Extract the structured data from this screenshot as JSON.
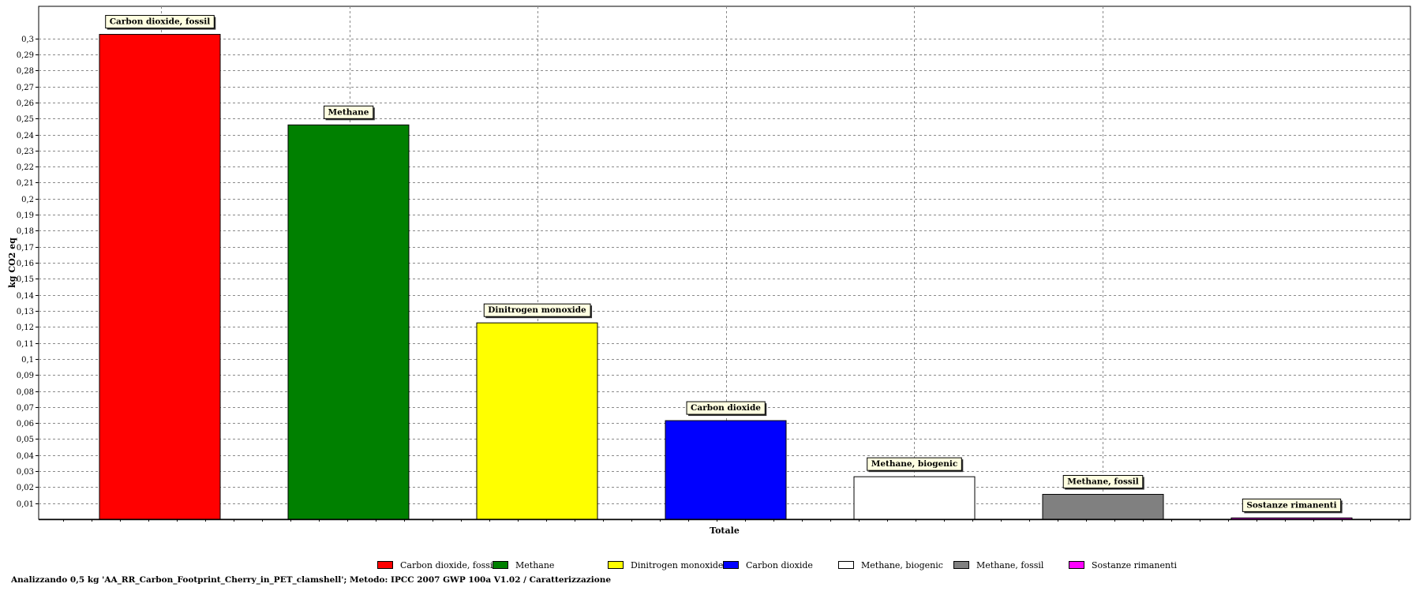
{
  "chart_data": {
    "type": "bar",
    "ylabel": "kg CO2 eq",
    "xlabel": "Totale",
    "ylim": [
      0,
      0.32
    ],
    "y_ticks": [
      {
        "value": 0.01,
        "label": "0,01"
      },
      {
        "value": 0.02,
        "label": "0,02"
      },
      {
        "value": 0.03,
        "label": "0,03"
      },
      {
        "value": 0.04,
        "label": "0,04"
      },
      {
        "value": 0.05,
        "label": "0,05"
      },
      {
        "value": 0.06,
        "label": "0,06"
      },
      {
        "value": 0.07,
        "label": "0,07"
      },
      {
        "value": 0.08,
        "label": "0,08"
      },
      {
        "value": 0.09,
        "label": "0,09"
      },
      {
        "value": 0.1,
        "label": "0,1"
      },
      {
        "value": 0.11,
        "label": "0,11"
      },
      {
        "value": 0.12,
        "label": "0,12"
      },
      {
        "value": 0.13,
        "label": "0,13"
      },
      {
        "value": 0.14,
        "label": "0,14"
      },
      {
        "value": 0.15,
        "label": "0,15"
      },
      {
        "value": 0.16,
        "label": "0,16"
      },
      {
        "value": 0.17,
        "label": "0,17"
      },
      {
        "value": 0.18,
        "label": "0,18"
      },
      {
        "value": 0.19,
        "label": "0,19"
      },
      {
        "value": 0.2,
        "label": "0,2"
      },
      {
        "value": 0.21,
        "label": "0,21"
      },
      {
        "value": 0.22,
        "label": "0,22"
      },
      {
        "value": 0.23,
        "label": "0,23"
      },
      {
        "value": 0.24,
        "label": "0,24"
      },
      {
        "value": 0.25,
        "label": "0,25"
      },
      {
        "value": 0.26,
        "label": "0,26"
      },
      {
        "value": 0.27,
        "label": "0,27"
      },
      {
        "value": 0.28,
        "label": "0,28"
      },
      {
        "value": 0.29,
        "label": "0,29"
      },
      {
        "value": 0.3,
        "label": "0,3"
      }
    ],
    "grid": true,
    "legend_position": "bottom",
    "series": [
      {
        "name": "Carbon dioxide, fossil",
        "value": 0.3025,
        "color": "#ff0000"
      },
      {
        "name": "Methane",
        "value": 0.246,
        "color": "#008000"
      },
      {
        "name": "Dinitrogen monoxide",
        "value": 0.1225,
        "color": "#ffff00"
      },
      {
        "name": "Carbon dioxide",
        "value": 0.0615,
        "color": "#0000ff"
      },
      {
        "name": "Methane, biogenic",
        "value": 0.0265,
        "color": "#ffffff"
      },
      {
        "name": "Methane, fossil",
        "value": 0.0155,
        "color": "#808080"
      },
      {
        "name": "Sostanze rimanenti",
        "value": 0.0008,
        "color": "#ff00ff"
      }
    ]
  },
  "legend": {
    "items": [
      {
        "label": "Carbon dioxide, fossil",
        "color": "#ff0000"
      },
      {
        "label": "Methane",
        "color": "#008000"
      },
      {
        "label": "Dinitrogen monoxide",
        "color": "#ffff00"
      },
      {
        "label": "Carbon dioxide",
        "color": "#0000ff"
      },
      {
        "label": "Methane, biogenic",
        "color": "#ffffff"
      },
      {
        "label": "Methane, fossil",
        "color": "#808080"
      },
      {
        "label": "Sostanze rimanenti",
        "color": "#ff00ff"
      }
    ]
  },
  "footer": {
    "caption": "Analizzando 0,5 kg 'AA_RR_Carbon_Footprint_Cherry_in_PET_clamshell';  Metodo: IPCC 2007 GWP 100a V1.02 / Caratterizzazione"
  }
}
